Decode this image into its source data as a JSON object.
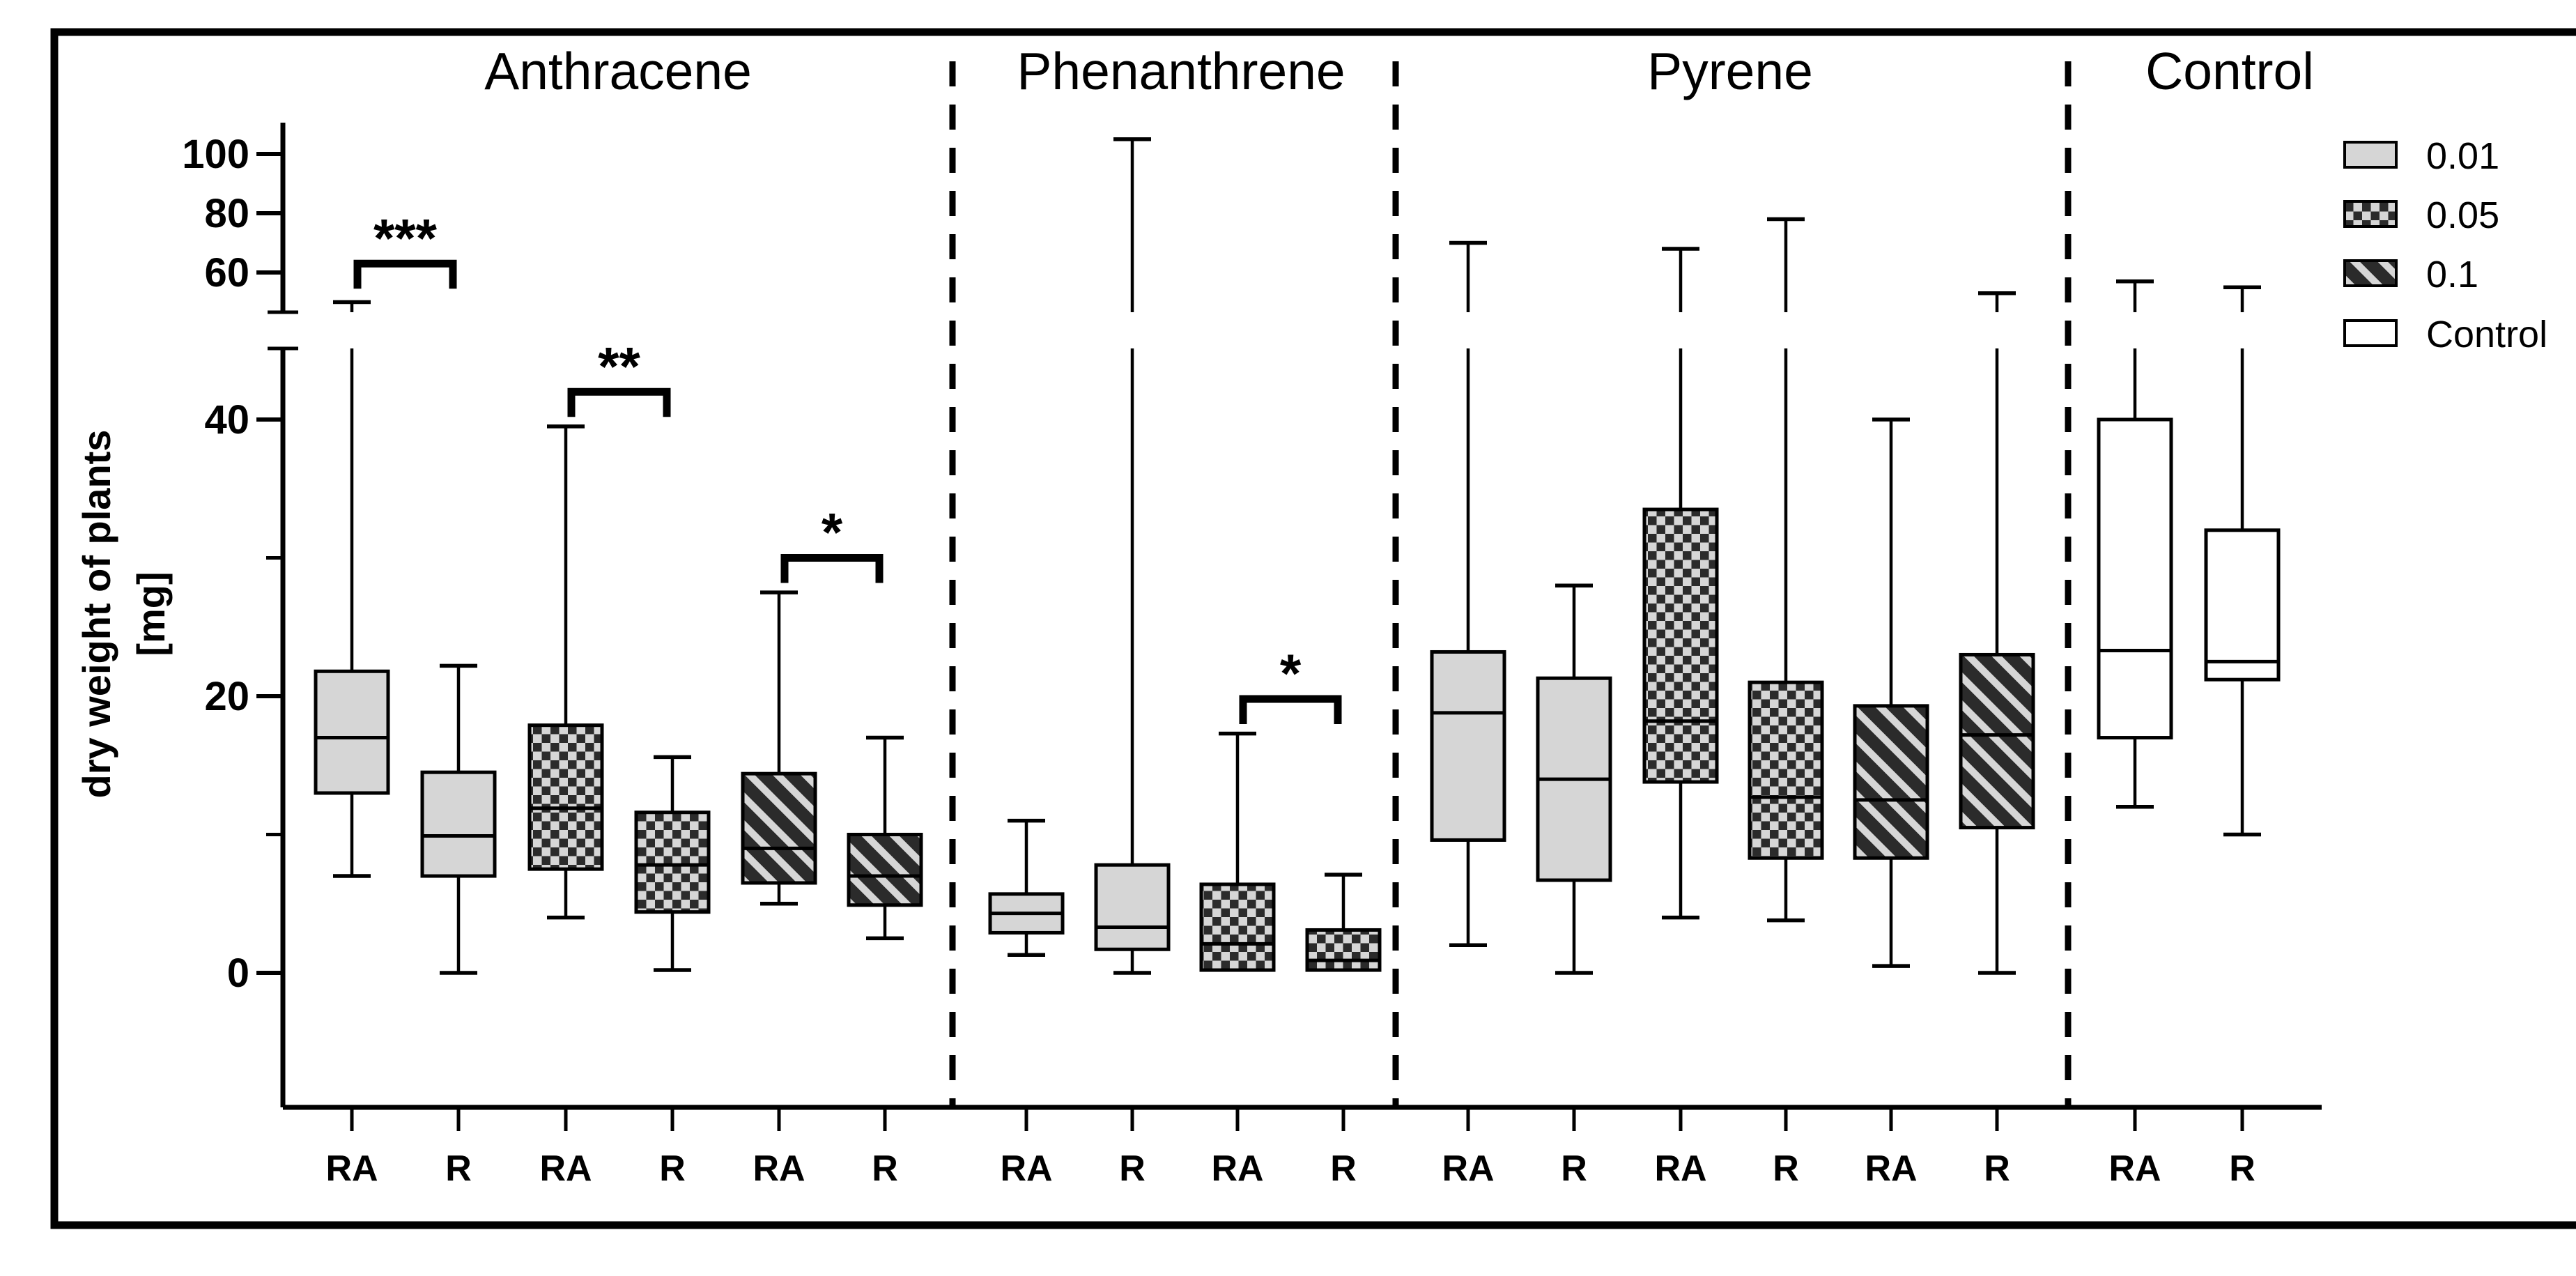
{
  "chart_data": {
    "type": "boxplot",
    "title": "",
    "ylabel": "dry weight of plants [mg]",
    "ylabel_lines": [
      "dry weight of plants",
      "[mg]"
    ],
    "y_axis": {
      "major_ticks": [
        0,
        20,
        40,
        60,
        80,
        100
      ],
      "minor_ticks": [
        10,
        30
      ],
      "axis_break": {
        "linear_below": 45,
        "compressed_above": 47
      },
      "ylim": [
        0,
        105
      ]
    },
    "x_axis": {
      "condition_labels": [
        "RA",
        "R"
      ]
    },
    "legend": {
      "position": "top-right",
      "items": [
        {
          "label": "0.01",
          "pattern": "solid-gray"
        },
        {
          "label": "0.05",
          "pattern": "checkerboard"
        },
        {
          "label": "0.1",
          "pattern": "diagonal-stripes"
        },
        {
          "label": "Control",
          "pattern": "white"
        }
      ]
    },
    "groups": [
      {
        "title": "Anthracene",
        "boxes": [
          {
            "condition": "RA",
            "concentration": "0.01",
            "pattern": "solid-gray",
            "min": 7,
            "q1": 13,
            "median": 17,
            "q3": 21.8,
            "max": 50
          },
          {
            "condition": "R",
            "concentration": "0.01",
            "pattern": "solid-gray",
            "min": 0,
            "q1": 7,
            "median": 9.9,
            "q3": 14.5,
            "max": 22.2
          },
          {
            "condition": "RA",
            "concentration": "0.05",
            "pattern": "checkerboard",
            "min": 4,
            "q1": 7.5,
            "median": 11.9,
            "q3": 17.9,
            "max": 39.5
          },
          {
            "condition": "R",
            "concentration": "0.05",
            "pattern": "checkerboard",
            "min": 0.2,
            "q1": 4.4,
            "median": 7.8,
            "q3": 11.6,
            "max": 15.6
          },
          {
            "condition": "RA",
            "concentration": "0.1",
            "pattern": "diagonal-stripes",
            "min": 5,
            "q1": 6.5,
            "median": 9,
            "q3": 14.4,
            "max": 27.5
          },
          {
            "condition": "R",
            "concentration": "0.1",
            "pattern": "diagonal-stripes",
            "min": 2.5,
            "q1": 4.9,
            "median": 7,
            "q3": 10,
            "max": 17
          }
        ]
      },
      {
        "title": "Phenanthrene",
        "boxes": [
          {
            "condition": "RA",
            "concentration": "0.01",
            "pattern": "solid-gray",
            "min": 1.3,
            "q1": 2.9,
            "median": 4.3,
            "q3": 5.7,
            "max": 11
          },
          {
            "condition": "R",
            "concentration": "0.01",
            "pattern": "solid-gray",
            "min": 0,
            "q1": 1.7,
            "median": 3.3,
            "q3": 7.8,
            "max": 105
          },
          {
            "condition": "RA",
            "concentration": "0.05",
            "pattern": "checkerboard",
            "min": 0.2,
            "q1": 0.2,
            "median": 2.1,
            "q3": 6.4,
            "max": 17.3
          },
          {
            "condition": "R",
            "concentration": "0.05",
            "pattern": "checkerboard",
            "min": 0.2,
            "q1": 0.2,
            "median": 0.9,
            "q3": 3.1,
            "max": 7.1
          }
        ]
      },
      {
        "title": "Pyrene",
        "boxes": [
          {
            "condition": "RA",
            "concentration": "0.01",
            "pattern": "solid-gray",
            "min": 2,
            "q1": 9.6,
            "median": 18.8,
            "q3": 23.2,
            "max": 70
          },
          {
            "condition": "R",
            "concentration": "0.01",
            "pattern": "solid-gray",
            "min": 0,
            "q1": 6.7,
            "median": 14,
            "q3": 21.3,
            "max": 28
          },
          {
            "condition": "RA",
            "concentration": "0.05",
            "pattern": "checkerboard",
            "min": 4,
            "q1": 13.8,
            "median": 18.2,
            "q3": 33.5,
            "max": 68
          },
          {
            "condition": "R",
            "concentration": "0.05",
            "pattern": "checkerboard",
            "min": 3.8,
            "q1": 8.3,
            "median": 12.7,
            "q3": 21,
            "max": 78
          },
          {
            "condition": "RA",
            "concentration": "0.1",
            "pattern": "diagonal-stripes",
            "min": 0.5,
            "q1": 8.3,
            "median": 12.5,
            "q3": 19.3,
            "max": 40
          },
          {
            "condition": "R",
            "concentration": "0.1",
            "pattern": "diagonal-stripes",
            "min": 0,
            "q1": 10.5,
            "median": 17.2,
            "q3": 23,
            "max": 53
          }
        ]
      },
      {
        "title": "Control",
        "boxes": [
          {
            "condition": "RA",
            "concentration": "Control",
            "pattern": "white",
            "min": 12,
            "q1": 17,
            "median": 23.3,
            "q3": 40,
            "max": 57
          },
          {
            "condition": "R",
            "concentration": "Control",
            "pattern": "white",
            "min": 10,
            "q1": 21.2,
            "median": 22.5,
            "q3": 32,
            "max": 55
          }
        ]
      }
    ],
    "significance_brackets": [
      {
        "group_index": 0,
        "box_indexes": [
          0,
          1
        ],
        "label": "***",
        "bar_value": 63
      },
      {
        "group_index": 0,
        "box_indexes": [
          2,
          3
        ],
        "label": "**",
        "bar_value": 42
      },
      {
        "group_index": 0,
        "box_indexes": [
          4,
          5
        ],
        "label": "*",
        "bar_value": 30
      },
      {
        "group_index": 1,
        "box_indexes": [
          2,
          3
        ],
        "label": "*",
        "bar_value": 19.8
      }
    ],
    "colors": {
      "box_fill": "#d6d6d6",
      "pattern_dark": "#2b2b2b",
      "stroke": "#000000",
      "background": "#ffffff"
    }
  }
}
